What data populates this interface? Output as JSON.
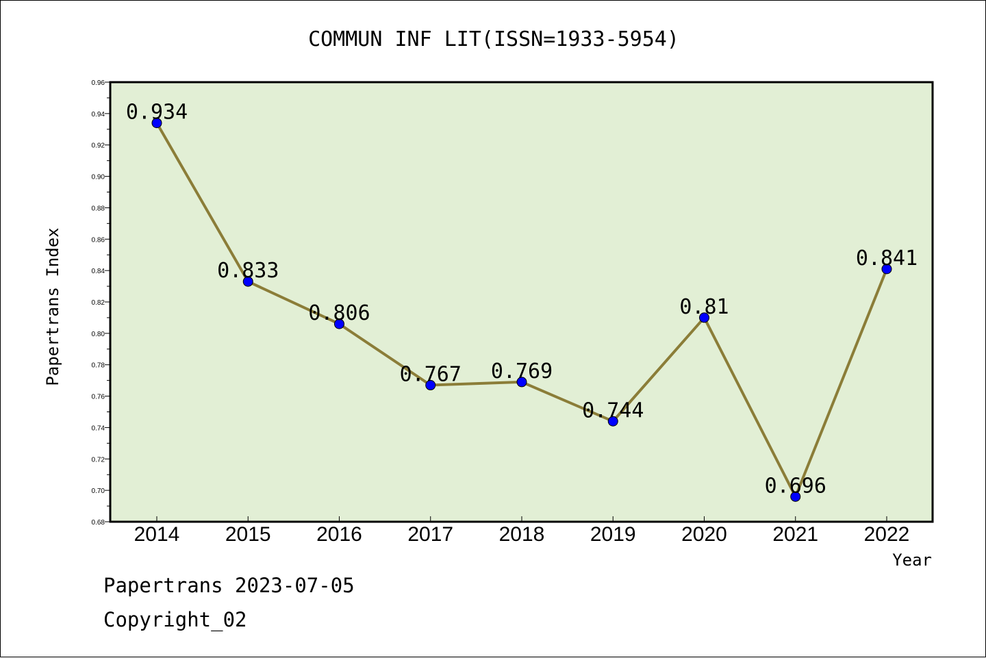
{
  "chart_data": {
    "type": "line",
    "title": "COMMUN INF LIT(ISSN=1933-5954)",
    "xlabel": "Year",
    "ylabel": "Papertrans Index",
    "categories": [
      "2014",
      "2015",
      "2016",
      "2017",
      "2018",
      "2019",
      "2020",
      "2021",
      "2022"
    ],
    "series": [
      {
        "values": [
          0.934,
          0.833,
          0.806,
          0.767,
          0.769,
          0.744,
          0.81,
          0.696,
          0.841
        ],
        "labels": [
          "0.934",
          "0.833",
          "0.806",
          "0.767",
          "0.769",
          "0.744",
          "0.81",
          "0.696",
          "0.841"
        ]
      }
    ],
    "ylim": [
      0.68,
      0.96
    ],
    "yticks": [
      "0.68",
      "0.70",
      "0.72",
      "0.74",
      "0.76",
      "0.78",
      "0.80",
      "0.82",
      "0.84",
      "0.86",
      "0.88",
      "0.90",
      "0.92",
      "0.94",
      "0.96"
    ],
    "grid": false,
    "colors": {
      "plot_background": "#e2efd5",
      "line": "#8b7d38",
      "marker": "#0000ff"
    }
  },
  "footer": {
    "line1": "Papertrans 2023-07-05",
    "line2": "Copyright_02"
  }
}
